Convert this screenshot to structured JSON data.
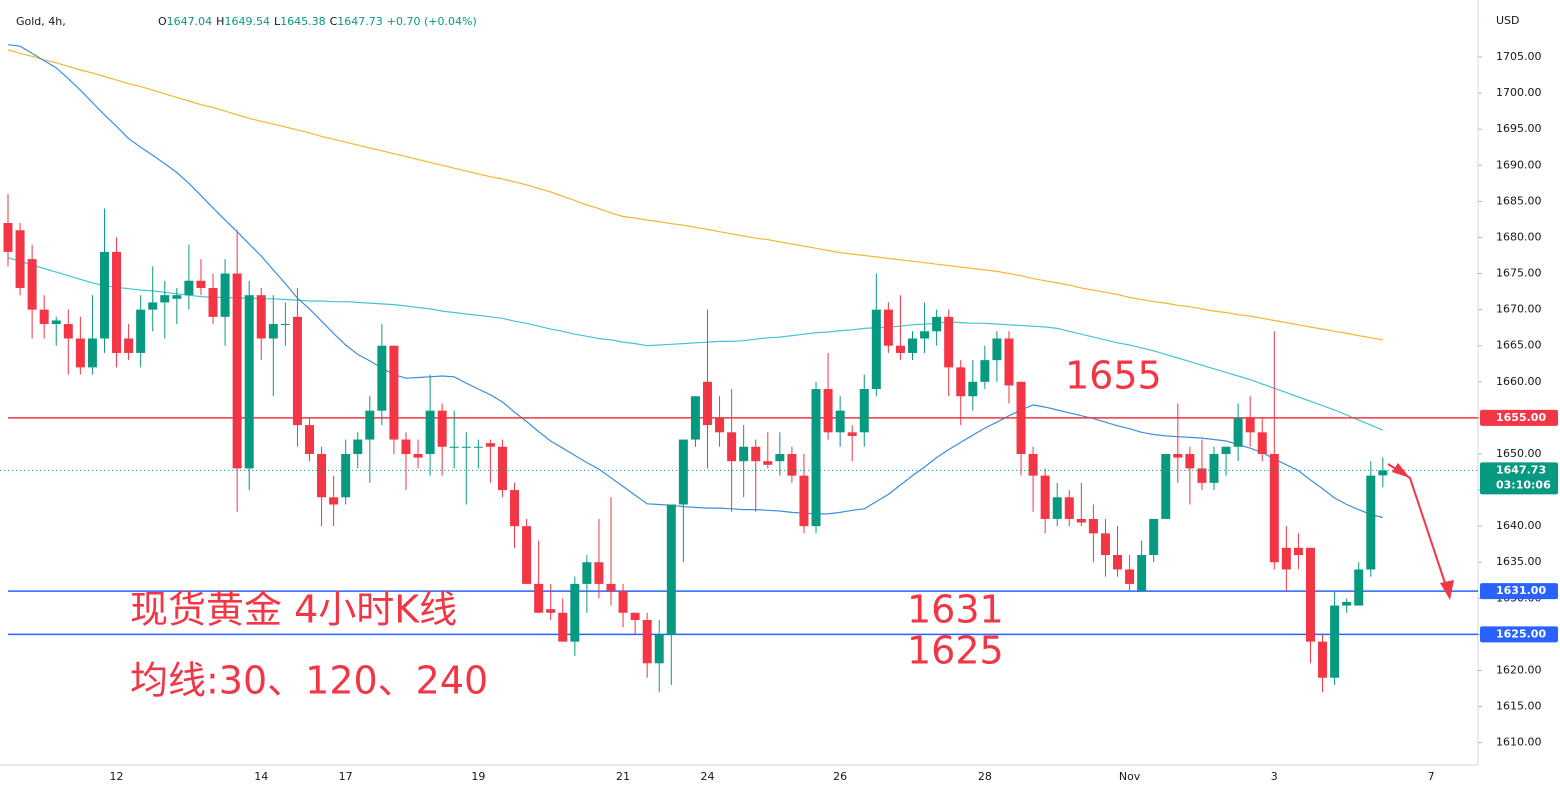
{
  "header": {
    "symbol": "Gold, 4h,",
    "ohlc_labels": [
      "O",
      "H",
      "L",
      "C"
    ],
    "change": "+0.70 (+0.04%)",
    "currency": "USD",
    "countdown": "03:10:06"
  },
  "chart_data": {
    "type": "candlestick",
    "categories": [
      null,
      null,
      null,
      null,
      null,
      null,
      null,
      null,
      null,
      "12",
      null,
      null,
      null,
      null,
      null,
      null,
      null,
      null,
      null,
      null,
      null,
      "14",
      null,
      null,
      null,
      null,
      null,
      null,
      "17",
      null,
      null,
      null,
      null,
      null,
      null,
      null,
      null,
      null,
      null,
      "19",
      null,
      null,
      null,
      null,
      null,
      null,
      null,
      null,
      null,
      null,
      null,
      "21",
      null,
      null,
      null,
      null,
      null,
      null,
      "24",
      null,
      null,
      null,
      null,
      null,
      null,
      null,
      null,
      null,
      null,
      "26",
      null,
      null,
      null,
      null,
      null,
      null,
      null,
      null,
      null,
      null,
      null,
      "28",
      null,
      null,
      null,
      null,
      null,
      null,
      null,
      null,
      null,
      null,
      null,
      "Nov",
      null,
      null,
      null,
      null,
      null,
      null,
      null,
      null,
      null,
      null,
      null,
      "3",
      null,
      null,
      null,
      null,
      null,
      null,
      null,
      null,
      null,
      null,
      null,
      null,
      "7",
      null,
      null,
      null
    ],
    "open": [
      1682,
      1681,
      1677,
      1670,
      1668,
      1668,
      1666,
      1662,
      1666,
      1678,
      1666,
      1664,
      1670,
      1671,
      1671.5,
      1672,
      1674,
      1673,
      1669,
      1675,
      1648,
      1672,
      1666,
      1668,
      1669,
      1654,
      1650,
      1644,
      1644,
      1650,
      1652,
      1656,
      1665,
      1652,
      1650,
      1650,
      1656,
      1651,
      1651,
      1651,
      1651.5,
      1651,
      1645,
      1640,
      1632,
      1628.5,
      1628,
      1624,
      1632,
      1635,
      1632,
      1631,
      1628,
      1627,
      1621,
      1625,
      1643,
      1652,
      1660,
      1655,
      1653,
      1649,
      1651,
      1649,
      1649,
      1650,
      1647,
      1640,
      1659,
      1653,
      1653,
      1653,
      1659,
      1670,
      1665,
      1664,
      1666,
      1667,
      1669,
      1662,
      1658,
      1660,
      1663,
      1666,
      1660,
      1650,
      1647,
      1641,
      1644,
      1641,
      1641,
      1639,
      1636,
      1634,
      1631,
      1636,
      1641,
      1650,
      1650,
      1648,
      1646,
      1650,
      1651,
      1655,
      1653,
      1650,
      1637,
      1637,
      1637,
      1624,
      1619,
      1629,
      1629,
      1634,
      1647.04,
      null,
      null,
      null,
      null,
      null,
      null,
      null
    ],
    "high": [
      1686,
      1682,
      1679,
      1672,
      1669,
      1670,
      1669,
      1672,
      1684,
      1680,
      1668,
      1672,
      1676,
      1674,
      1673,
      1679,
      1677,
      1675,
      1677,
      1681,
      1674,
      1673,
      1672,
      1671,
      1673,
      1655,
      1651,
      1647,
      1652,
      1653,
      1658,
      1668,
      1665,
      1653,
      1652,
      1661,
      1657,
      1656,
      1653,
      1652,
      1652,
      1652,
      1646,
      1641,
      1638,
      1632,
      1630,
      1633,
      1636,
      1641,
      1644,
      1632,
      1628,
      1628,
      1627,
      1643,
      1652,
      1658,
      1670,
      1658,
      1659,
      1654,
      1652,
      1653,
      1653,
      1651,
      1650,
      1660,
      1664,
      1658,
      1654,
      1661,
      1675,
      1671,
      1672,
      1667,
      1671,
      1670,
      1670,
      1663,
      1663,
      1665,
      1667,
      1667,
      1660,
      1651,
      1648,
      1646,
      1645,
      1646,
      1643,
      1641,
      1640,
      1636,
      1638,
      1641,
      1650,
      1657,
      1651,
      1652,
      1651,
      1651,
      1657,
      1658,
      1655,
      1667,
      1640,
      1639,
      1637,
      1625,
      1631,
      1630,
      1635,
      1649,
      1649.54,
      null,
      null,
      null,
      null,
      null,
      null,
      null
    ],
    "low": [
      1676,
      1672,
      1666,
      1666,
      1665,
      1661,
      1661,
      1661,
      1664,
      1662,
      1663,
      1662,
      1667,
      1666,
      1668,
      1670,
      1672,
      1668,
      1665,
      1642,
      1645,
      1663,
      1658,
      1665,
      1651,
      1649,
      1640,
      1640,
      1643,
      1648,
      1646,
      1654,
      1650,
      1645,
      1648,
      1647,
      1647,
      1648,
      1643,
      1648,
      1646,
      1644,
      1637,
      1632,
      1628,
      1627,
      1624,
      1622,
      1628,
      1630,
      1629,
      1626,
      1625,
      1619,
      1617,
      1618,
      1635,
      1651,
      1648,
      1651,
      1642,
      1644,
      1642,
      1648,
      1647,
      1646,
      1639,
      1639,
      1652,
      1651,
      1649,
      1651,
      1658,
      1664,
      1663,
      1663,
      1664,
      1665,
      1658,
      1654,
      1656,
      1659,
      1660,
      1657,
      1647,
      1642,
      1639,
      1640,
      1640,
      1640,
      1635,
      1633,
      1633,
      1631,
      1631,
      1635,
      1641,
      1646,
      1643,
      1645,
      1645,
      1647,
      1649,
      1651,
      1649,
      1634,
      1631,
      1634,
      1621,
      1617,
      1618,
      1628,
      1629,
      1633,
      1645.38,
      null,
      null,
      null,
      null,
      null,
      null,
      null
    ],
    "close": [
      1678,
      1673,
      1670,
      1668,
      1668.5,
      1666,
      1662,
      1666,
      1678,
      1664,
      1664,
      1670,
      1671,
      1672,
      1672,
      1674,
      1673,
      1669,
      1675,
      1648,
      1672,
      1666,
      1668,
      1668,
      1654,
      1650,
      1644,
      1643,
      1650,
      1652,
      1656,
      1665,
      1652,
      1650,
      1649.5,
      1656,
      1651,
      1651,
      1651,
      1651,
      1651,
      1645,
      1640,
      1632,
      1628,
      1628,
      1624,
      1632,
      1635,
      1632,
      1631,
      1628,
      1627,
      1621,
      1625,
      1643,
      1652,
      1658,
      1654,
      1653,
      1649,
      1651,
      1649,
      1648.5,
      1650,
      1647,
      1640,
      1659,
      1653,
      1656,
      1652.5,
      1659,
      1670,
      1665,
      1664,
      1666,
      1667,
      1669,
      1662,
      1658,
      1660,
      1663,
      1666,
      1659.5,
      1650,
      1647,
      1641,
      1644,
      1641,
      1640.5,
      1639,
      1636,
      1634,
      1632,
      1636,
      1641,
      1650,
      1649.5,
      1648,
      1646,
      1650,
      1651,
      1655,
      1653,
      1650,
      1635,
      1634,
      1636,
      1624,
      1619,
      1629,
      1629.5,
      1634,
      1647,
      1647.73,
      null,
      null,
      null,
      null,
      null,
      null,
      null
    ],
    "up_color": "#089981",
    "down_color": "#f23645",
    "series": [
      {
        "color": "#f5b731",
        "values": [
          1706.0,
          1705.5,
          1705.1,
          1704.6,
          1704.2,
          1703.7,
          1703.2,
          1702.8,
          1702.3,
          1701.8,
          1701.3,
          1700.9,
          1700.4,
          1699.9,
          1699.4,
          1698.9,
          1698.4,
          1698.0,
          1697.5,
          1697.0,
          1696.5,
          1696.1,
          1695.7,
          1695.3,
          1694.9,
          1694.5,
          1694.0,
          1693.6,
          1693.2,
          1692.8,
          1692.4,
          1692.0,
          1691.6,
          1691.2,
          1690.8,
          1690.4,
          1690.0,
          1689.6,
          1689.2,
          1688.8,
          1688.4,
          1688.1,
          1687.7,
          1687.3,
          1686.8,
          1686.3,
          1685.7,
          1685.1,
          1684.5,
          1684.0,
          1683.4,
          1682.9,
          1682.7,
          1682.4,
          1682.2,
          1681.9,
          1681.7,
          1681.4,
          1681.1,
          1680.8,
          1680.5,
          1680.2,
          1679.9,
          1679.7,
          1679.4,
          1679.1,
          1678.8,
          1678.5,
          1678.2,
          1677.9,
          1677.7,
          1677.5,
          1677.3,
          1677.1,
          1676.9,
          1676.7,
          1676.5,
          1676.3,
          1676.1,
          1675.9,
          1675.7,
          1675.5,
          1675.3,
          1675.0,
          1674.7,
          1674.3,
          1674.0,
          1673.7,
          1673.4,
          1673.0,
          1672.7,
          1672.4,
          1672.1,
          1671.7,
          1671.4,
          1671.1,
          1670.9,
          1670.6,
          1670.4,
          1670.1,
          1669.8,
          1669.6,
          1669.3,
          1669.1,
          1668.8,
          1668.5,
          1668.2,
          1667.9,
          1667.6,
          1667.3,
          1667.0,
          1666.7,
          1666.4,
          1666.1,
          1665.8,
          null,
          null,
          null,
          null,
          null,
          null,
          null
        ]
      },
      {
        "color": "#45c4d6",
        "values": [
          1677.2,
          1676.7,
          1676.2,
          1675.7,
          1675.2,
          1674.7,
          1674.2,
          1673.7,
          1673.3,
          1673.1,
          1672.9,
          1672.7,
          1672.6,
          1672.4,
          1672.2,
          1672.0,
          1671.8,
          1671.7,
          1671.7,
          1671.6,
          1671.6,
          1671.5,
          1671.5,
          1671.4,
          1671.3,
          1671.2,
          1671.2,
          1671.1,
          1671.1,
          1671.0,
          1670.9,
          1670.8,
          1670.7,
          1670.5,
          1670.3,
          1670.1,
          1669.8,
          1669.6,
          1669.4,
          1669.2,
          1669.0,
          1668.8,
          1668.4,
          1668.1,
          1667.7,
          1667.3,
          1667.0,
          1666.6,
          1666.3,
          1666.0,
          1665.8,
          1665.5,
          1665.3,
          1665.0,
          1665.1,
          1665.2,
          1665.3,
          1665.4,
          1665.5,
          1665.6,
          1665.6,
          1665.7,
          1665.9,
          1666.1,
          1666.2,
          1666.4,
          1666.6,
          1666.8,
          1666.9,
          1667.1,
          1667.2,
          1667.4,
          1667.5,
          1667.6,
          1667.7,
          1667.9,
          1668.0,
          1668.1,
          1668.3,
          1668.2,
          1668.1,
          1668.1,
          1668.0,
          1667.9,
          1667.8,
          1667.7,
          1667.6,
          1667.4,
          1667.0,
          1666.6,
          1666.2,
          1665.8,
          1665.4,
          1665.1,
          1664.7,
          1664.3,
          1663.8,
          1663.3,
          1662.8,
          1662.3,
          1661.8,
          1661.3,
          1660.8,
          1660.3,
          1659.7,
          1659.1,
          1658.5,
          1657.9,
          1657.3,
          1656.7,
          1656.1,
          1655.4,
          1654.7,
          1654.0,
          1653.3,
          null,
          null,
          null,
          null,
          null,
          null,
          null
        ]
      },
      {
        "color": "#3d8fd9",
        "values": [
          1706.7,
          1706.5,
          1705.5,
          1704.5,
          1703.5,
          1702.0,
          1700.4,
          1698.7,
          1697.0,
          1695.4,
          1693.7,
          1692.5,
          1691.4,
          1690.2,
          1689.0,
          1687.5,
          1685.8,
          1684.1,
          1682.4,
          1680.8,
          1679.1,
          1677.4,
          1675.5,
          1673.6,
          1671.6,
          1670.1,
          1668.4,
          1666.7,
          1665.1,
          1663.8,
          1662.9,
          1661.9,
          1661.0,
          1660.5,
          1660.6,
          1660.7,
          1660.8,
          1660.7,
          1659.8,
          1659.0,
          1658.2,
          1657.2,
          1655.8,
          1654.5,
          1653.1,
          1651.8,
          1650.8,
          1649.8,
          1648.8,
          1647.9,
          1646.7,
          1645.5,
          1644.3,
          1643.1,
          1643.0,
          1642.9,
          1642.7,
          1642.6,
          1642.5,
          1642.5,
          1642.4,
          1642.3,
          1642.3,
          1642.2,
          1642.1,
          1641.9,
          1641.8,
          1641.7,
          1641.7,
          1641.9,
          1642.2,
          1642.4,
          1643.4,
          1644.4,
          1645.7,
          1647.0,
          1648.2,
          1649.5,
          1650.6,
          1651.6,
          1652.6,
          1653.6,
          1654.4,
          1655.3,
          1656.1,
          1656.8,
          1656.5,
          1656.1,
          1655.7,
          1655.3,
          1654.9,
          1654.4,
          1653.9,
          1653.5,
          1653.0,
          1652.7,
          1652.5,
          1652.4,
          1652.3,
          1652.2,
          1652.0,
          1651.8,
          1651.3,
          1650.8,
          1650.2,
          1649.3,
          1648.5,
          1647.7,
          1646.4,
          1645.2,
          1643.9,
          1643.0,
          1642.3,
          1641.6,
          1641.2,
          null,
          null,
          null,
          null,
          null,
          null,
          null
        ]
      }
    ],
    "levels": [
      {
        "value": 1655,
        "label": "1655.00",
        "color": "#f23645"
      },
      {
        "value": 1631,
        "label": "1631.00",
        "color": "#2962ff"
      },
      {
        "value": 1625,
        "label": "1625.00",
        "color": "#2962ff"
      }
    ],
    "annotations": [
      "现货黄金 4小时K线",
      "均线:30、120、240"
    ],
    "ylim": [
      1607.6,
      1712.9
    ],
    "yticks": [
      {
        "value": 1610,
        "label": "1610.00"
      },
      {
        "value": 1615,
        "label": "1615.00"
      },
      {
        "value": 1620,
        "label": "1620.00"
      },
      {
        "value": 1625,
        "label": "1625.00"
      },
      {
        "value": 1630,
        "label": "1630.00"
      },
      {
        "value": 1635,
        "label": "1635.00"
      },
      {
        "value": 1640,
        "label": "1640.00"
      },
      {
        "value": 1645,
        "label": "1645.00"
      },
      {
        "value": 1650,
        "label": "1650.00"
      },
      {
        "value": 1655,
        "label": "1655.00"
      },
      {
        "value": 1660,
        "label": "1660.00"
      },
      {
        "value": 1665,
        "label": "1665.00"
      },
      {
        "value": 1670,
        "label": "1670.00"
      },
      {
        "value": 1675,
        "label": "1675.00"
      },
      {
        "value": 1680,
        "label": "1680.00"
      },
      {
        "value": 1685,
        "label": "1685.00"
      },
      {
        "value": 1690,
        "label": "1690.00"
      },
      {
        "value": 1695,
        "label": "1695.00"
      },
      {
        "value": 1700,
        "label": "1700.00"
      },
      {
        "value": 1705,
        "label": "1705.00"
      }
    ]
  }
}
